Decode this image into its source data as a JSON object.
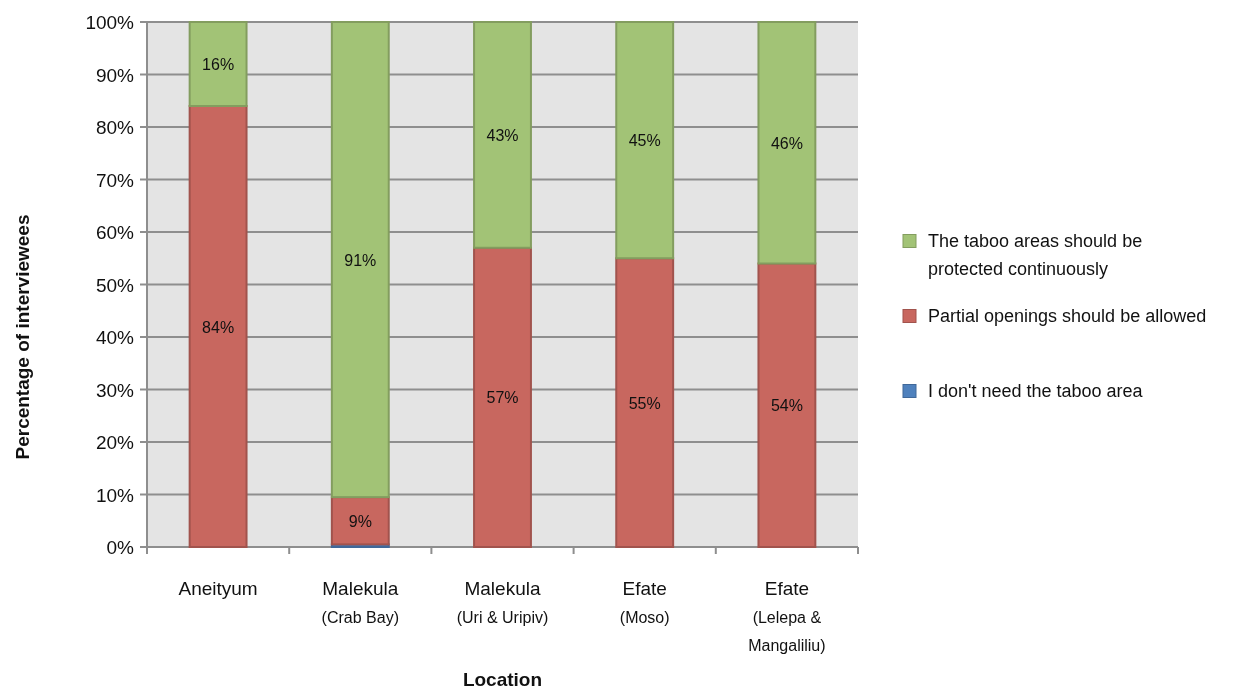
{
  "chart_data": {
    "type": "bar",
    "stacked": true,
    "xlabel": "Location",
    "ylabel": "Percentage of interviewees",
    "categories": [
      "Aneityum",
      "Malekula\n(Crab Bay)",
      "Malekula\n(Uri & Uripiv)",
      "Efate\n(Moso)",
      "Efate\n(Lelepa &\nMangaliliu)"
    ],
    "series": [
      {
        "name": "I don't need the taboo area",
        "color": "#4f81bd",
        "values": [
          0,
          0.5,
          0,
          0,
          0
        ]
      },
      {
        "name": "Partial openings should be allowed",
        "color": "#c8675f",
        "values": [
          84,
          9,
          57,
          55,
          54
        ],
        "value_labels": [
          "84%",
          "9%",
          "57%",
          "55%",
          "54%"
        ]
      },
      {
        "name": "The taboo areas should be protected continuously",
        "color": "#a2c376",
        "values": [
          16,
          90.5,
          43,
          45,
          46
        ],
        "value_labels": [
          "16%",
          "91%",
          "43%",
          "45%",
          "46%"
        ]
      }
    ],
    "ylim": [
      0,
      100
    ],
    "yticks": [
      {
        "value": 0,
        "label": "0%"
      },
      {
        "value": 10,
        "label": "10%"
      },
      {
        "value": 20,
        "label": "20%"
      },
      {
        "value": 30,
        "label": "30%"
      },
      {
        "value": 40,
        "label": "40%"
      },
      {
        "value": 50,
        "label": "50%"
      },
      {
        "value": 60,
        "label": "60%"
      },
      {
        "value": 70,
        "label": "70%"
      },
      {
        "value": 80,
        "label": "80%"
      },
      {
        "value": 90,
        "label": "90%"
      },
      {
        "value": 100,
        "label": "100%"
      }
    ],
    "grid": "y",
    "legend": "right"
  }
}
